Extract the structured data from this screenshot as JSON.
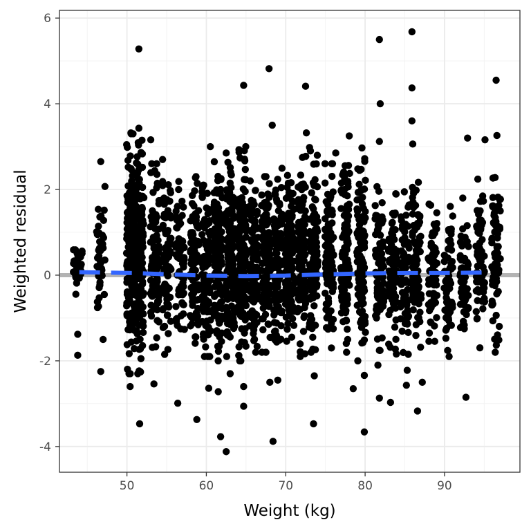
{
  "chart_data": {
    "type": "scatter",
    "title": "",
    "xlabel": "Weight (kg)",
    "ylabel": "Weighted residual",
    "xlim": [
      41.5,
      99.5
    ],
    "ylim": [
      -4.6,
      6.18
    ],
    "x_ticks": [
      50,
      60,
      70,
      80,
      90
    ],
    "x_tick_labels": [
      "50",
      "60",
      "70",
      "80",
      "90"
    ],
    "y_ticks": [
      -4,
      -2,
      0,
      2,
      4,
      6
    ],
    "y_tick_labels": [
      "-4",
      "-2",
      "0",
      "2",
      "4",
      "6"
    ],
    "grid": true,
    "legend": "none",
    "reference_line": {
      "y": 0,
      "color": "#b3b3b3"
    },
    "smooth_line": {
      "style": "dashed",
      "color": "#3366ff",
      "x": [
        44,
        47,
        51,
        55,
        60,
        65,
        70,
        75,
        80,
        85,
        90,
        95
      ],
      "y": [
        0.07,
        0.06,
        0.05,
        0.02,
        -0.01,
        -0.02,
        -0.01,
        0.02,
        0.04,
        0.05,
        0.05,
        0.06
      ]
    },
    "point_color": "#000000",
    "dense_columns": [
      {
        "x": 43.8,
        "n": 28,
        "lo": -0.7,
        "hi": 1.0
      },
      {
        "x": 46.7,
        "n": 45,
        "lo": -1.5,
        "hi": 2.1
      },
      {
        "x": 50.5,
        "n": 160,
        "lo": -2.3,
        "hi": 3.3
      },
      {
        "x": 51.6,
        "n": 170,
        "lo": -2.3,
        "hi": 3.4
      },
      {
        "x": 53.5,
        "n": 90,
        "lo": -2.2,
        "hi": 2.6
      },
      {
        "x": 55.0,
        "n": 90,
        "lo": -2.1,
        "hi": 2.7
      },
      {
        "x": 56.7,
        "n": 70,
        "lo": -1.8,
        "hi": 2.6
      },
      {
        "x": 58.5,
        "n": 90,
        "lo": -1.9,
        "hi": 2.3
      },
      {
        "x": 60.0,
        "n": 110,
        "lo": -1.9,
        "hi": 2.1
      },
      {
        "x": 61.5,
        "n": 150,
        "lo": -2.0,
        "hi": 2.8
      },
      {
        "x": 63.0,
        "n": 160,
        "lo": -1.9,
        "hi": 2.8
      },
      {
        "x": 64.5,
        "n": 160,
        "lo": -2.0,
        "hi": 3.0
      },
      {
        "x": 66.0,
        "n": 140,
        "lo": -1.8,
        "hi": 2.2
      },
      {
        "x": 67.5,
        "n": 130,
        "lo": -1.8,
        "hi": 2.3
      },
      {
        "x": 69.0,
        "n": 120,
        "lo": -1.9,
        "hi": 2.5
      },
      {
        "x": 70.5,
        "n": 130,
        "lo": -1.8,
        "hi": 2.5
      },
      {
        "x": 72.0,
        "n": 140,
        "lo": -1.9,
        "hi": 2.8
      },
      {
        "x": 73.5,
        "n": 120,
        "lo": -1.8,
        "hi": 2.9
      },
      {
        "x": 75.5,
        "n": 110,
        "lo": -1.7,
        "hi": 2.6
      },
      {
        "x": 77.5,
        "n": 110,
        "lo": -1.8,
        "hi": 3.2
      },
      {
        "x": 79.5,
        "n": 110,
        "lo": -2.0,
        "hi": 3.0
      },
      {
        "x": 81.8,
        "n": 90,
        "lo": -2.1,
        "hi": 2.2
      },
      {
        "x": 83.5,
        "n": 80,
        "lo": -1.9,
        "hi": 1.9
      },
      {
        "x": 85.0,
        "n": 80,
        "lo": -1.9,
        "hi": 2.0
      },
      {
        "x": 86.5,
        "n": 80,
        "lo": -1.8,
        "hi": 2.5
      },
      {
        "x": 88.5,
        "n": 70,
        "lo": -1.7,
        "hi": 1.8
      },
      {
        "x": 90.5,
        "n": 60,
        "lo": -1.9,
        "hi": 1.9
      },
      {
        "x": 92.5,
        "n": 60,
        "lo": -1.9,
        "hi": 1.8
      },
      {
        "x": 94.5,
        "n": 70,
        "lo": -1.7,
        "hi": 2.3
      },
      {
        "x": 96.5,
        "n": 80,
        "lo": -1.8,
        "hi": 2.5
      }
    ],
    "points": [
      [
        51.5,
        5.28
      ],
      [
        67.9,
        4.82
      ],
      [
        64.7,
        4.43
      ],
      [
        72.5,
        4.41
      ],
      [
        81.8,
        5.5
      ],
      [
        85.9,
        5.68
      ],
      [
        85.9,
        4.37
      ],
      [
        81.9,
        4.0
      ],
      [
        85.9,
        3.6
      ],
      [
        96.5,
        4.55
      ],
      [
        68.3,
        3.5
      ],
      [
        72.6,
        3.32
      ],
      [
        78.0,
        3.25
      ],
      [
        81.8,
        3.12
      ],
      [
        86.0,
        3.06
      ],
      [
        92.9,
        3.2
      ],
      [
        96.6,
        3.26
      ],
      [
        95.1,
        3.16
      ],
      [
        53.0,
        3.16
      ],
      [
        60.5,
        3.0
      ],
      [
        62.5,
        2.85
      ],
      [
        73.0,
        2.98
      ],
      [
        76.3,
        2.85
      ],
      [
        79.6,
        2.97
      ],
      [
        46.7,
        2.65
      ],
      [
        51.5,
        3.43
      ],
      [
        50.5,
        3.32
      ],
      [
        51.6,
        -3.47
      ],
      [
        56.4,
        -2.99
      ],
      [
        58.8,
        -3.37
      ],
      [
        61.8,
        -3.77
      ],
      [
        62.5,
        -4.12
      ],
      [
        68.4,
        -3.88
      ],
      [
        73.5,
        -3.47
      ],
      [
        79.9,
        -3.66
      ],
      [
        81.8,
        -2.87
      ],
      [
        83.2,
        -2.97
      ],
      [
        86.6,
        -3.17
      ],
      [
        92.7,
        -2.85
      ],
      [
        64.7,
        -3.06
      ],
      [
        64.7,
        -2.6
      ],
      [
        60.3,
        -2.64
      ],
      [
        61.5,
        -2.72
      ],
      [
        50.4,
        -2.6
      ],
      [
        53.4,
        -2.54
      ],
      [
        46.7,
        -2.25
      ],
      [
        43.8,
        -1.87
      ],
      [
        43.8,
        -1.38
      ],
      [
        68.0,
        -2.5
      ],
      [
        69.0,
        -2.45
      ],
      [
        78.5,
        -2.65
      ],
      [
        87.2,
        -2.5
      ],
      [
        85.2,
        -2.57
      ],
      [
        85.3,
        -2.22
      ],
      [
        73.6,
        -2.35
      ],
      [
        79.9,
        -2.34
      ],
      [
        63.0,
        -2.3
      ]
    ]
  }
}
